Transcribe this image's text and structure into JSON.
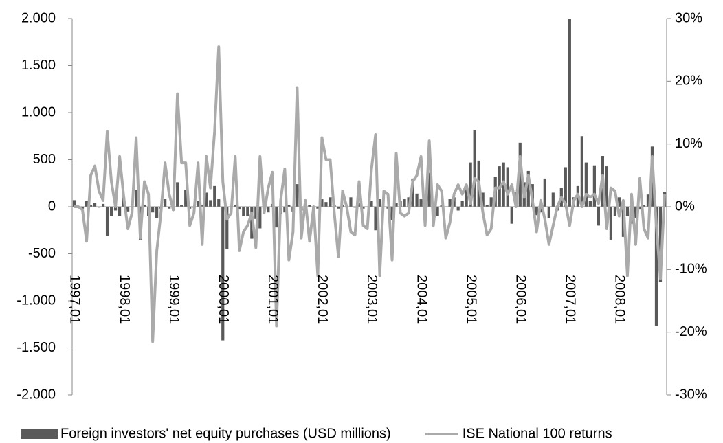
{
  "chart_data": {
    "type": "bar",
    "categories": [
      "1997,01",
      null,
      null,
      null,
      null,
      null,
      null,
      null,
      null,
      null,
      null,
      null,
      "1998,01",
      null,
      null,
      null,
      null,
      null,
      null,
      null,
      null,
      null,
      null,
      null,
      "1999,01",
      null,
      null,
      null,
      null,
      null,
      null,
      null,
      null,
      null,
      null,
      null,
      "2000,01",
      null,
      null,
      null,
      null,
      null,
      null,
      null,
      null,
      null,
      null,
      null,
      "2001,01",
      null,
      null,
      null,
      null,
      null,
      null,
      null,
      null,
      null,
      null,
      null,
      "2002,01",
      null,
      null,
      null,
      null,
      null,
      null,
      null,
      null,
      null,
      null,
      null,
      "2003,01",
      null,
      null,
      null,
      null,
      null,
      null,
      null,
      null,
      null,
      null,
      null,
      "2004,01",
      null,
      null,
      null,
      null,
      null,
      null,
      null,
      null,
      null,
      null,
      null,
      "2005,01",
      null,
      null,
      null,
      null,
      null,
      null,
      null,
      null,
      null,
      null,
      null,
      "2006,01",
      null,
      null,
      null,
      null,
      null,
      null,
      null,
      null,
      null,
      null,
      null,
      "2007,01",
      null,
      null,
      null,
      null,
      null,
      null,
      null,
      null,
      null,
      null,
      null,
      "2008,01",
      null,
      null,
      null,
      null,
      null,
      null,
      null,
      null,
      null,
      null,
      null
    ],
    "series": [
      {
        "name": "Foreign investors' net equity purchases (USD millions)",
        "type": "bar",
        "color": "#595959",
        "values": [
          70,
          0,
          -20,
          60,
          20,
          40,
          -10,
          30,
          -310,
          -100,
          -40,
          -100,
          100,
          -50,
          -20,
          180,
          -350,
          20,
          -100,
          -60,
          -120,
          -20,
          80,
          -20,
          -40,
          260,
          20,
          180,
          -20,
          -10,
          60,
          20,
          150,
          70,
          220,
          80,
          -1420,
          -450,
          -20,
          20,
          -30,
          -100,
          -100,
          -340,
          -130,
          -230,
          -30,
          -60,
          30,
          -220,
          -80,
          -60,
          20,
          -50,
          240,
          -40,
          -40,
          20,
          -50,
          -20,
          80,
          50,
          100,
          20,
          -20,
          20,
          10,
          100,
          -10,
          40,
          -20,
          0,
          60,
          -250,
          80,
          0,
          -20,
          -140,
          40,
          60,
          80,
          100,
          300,
          140,
          80,
          60,
          360,
          -30,
          -100,
          20,
          0,
          80,
          100,
          -40,
          60,
          220,
          470,
          810,
          490,
          150,
          20,
          100,
          320,
          430,
          470,
          420,
          -180,
          160,
          680,
          260,
          380,
          240,
          -90,
          -60,
          300,
          -120,
          150,
          -40,
          200,
          420,
          2000,
          100,
          220,
          750,
          470,
          60,
          440,
          -200,
          540,
          430,
          -350,
          -100,
          100,
          -320,
          -100,
          -180,
          -120,
          -30,
          20,
          130,
          640,
          -1270,
          -800,
          160
        ]
      },
      {
        "name": "ISE National 100 returns",
        "type": "line",
        "axis": "y2",
        "color": "#aaaaaa",
        "values": [
          0,
          0,
          -0.5,
          -5.5,
          5,
          6.5,
          2.5,
          1,
          12,
          4,
          0,
          8,
          1.5,
          -3.5,
          -1,
          11,
          -5,
          4,
          2,
          -21.5,
          -7,
          -1,
          7,
          2,
          -0.5,
          18,
          7,
          7,
          -3,
          -1,
          7,
          -6,
          8,
          3,
          12,
          25.5,
          4,
          -2,
          -1,
          8,
          -7,
          -4,
          -3,
          -1,
          -6.5,
          8,
          -1,
          3,
          5.5,
          -19,
          1,
          6,
          -8.5,
          -4,
          19,
          -5,
          1,
          -5.5,
          0,
          -11,
          11,
          7.5,
          7.5,
          -1,
          -8,
          2.5,
          0,
          -4,
          -4.5,
          4,
          -3,
          -3.5,
          6,
          11.5,
          -11,
          2.5,
          2,
          -8.5,
          8.5,
          -1,
          -1.5,
          -1,
          4,
          5,
          8,
          -3,
          10.5,
          -3,
          3.5,
          2.5,
          -5,
          -2.5,
          2,
          3.5,
          2,
          3.5,
          0.5,
          4.5,
          4,
          -1,
          -4.5,
          -3.5,
          3,
          3,
          4,
          2,
          3.5,
          0,
          8,
          1.5,
          5,
          1,
          -4,
          1,
          -2,
          -6,
          -3,
          0,
          1.5,
          0.5,
          -3,
          1,
          2,
          0,
          2,
          1.5,
          2,
          0.5,
          5,
          -3.5,
          3,
          2.5,
          -1.5,
          1,
          -11,
          2,
          -6,
          4.5,
          -3.5,
          -5,
          8,
          -3,
          -11.5,
          2
        ]
      }
    ],
    "ylim": [
      -2000,
      2000
    ],
    "yticks": [
      {
        "value": -2000,
        "label": "-2.000"
      },
      {
        "value": -1500,
        "label": "-1.500"
      },
      {
        "value": -1000,
        "label": "-1.000"
      },
      -500,
      0,
      500,
      {
        "value": 1000,
        "label": "1.000"
      },
      {
        "value": 1500,
        "label": "1.500"
      },
      {
        "value": 2000,
        "label": "2.000"
      }
    ],
    "y2lim": [
      -30,
      30
    ],
    "y2ticks": [
      {
        "value": -30,
        "label": "-30%"
      },
      {
        "value": -20,
        "label": "-20%"
      },
      {
        "value": -10,
        "label": "-10%"
      },
      {
        "value": 0,
        "label": "0%"
      },
      {
        "value": 10,
        "label": "10%"
      },
      {
        "value": 20,
        "label": "20%"
      },
      {
        "value": 30,
        "label": "30%"
      }
    ],
    "legend": "bottom"
  }
}
